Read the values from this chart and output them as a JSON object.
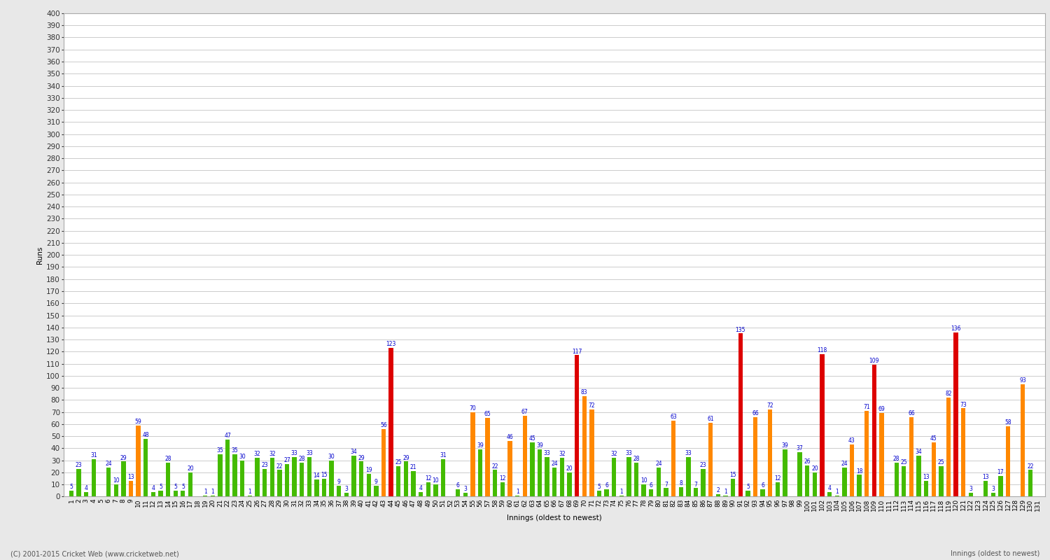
{
  "ylabel": "Runs",
  "xlabel": "Innings (oldest to newest)",
  "copyright": "(C) 2001-2015 Cricket Web (www.cricketweb.net)",
  "ylim": [
    0,
    400
  ],
  "ytick_step": 10,
  "ytick_label_step": 10,
  "bar_width": 0.6,
  "innings_values": [
    5,
    23,
    4,
    31,
    0,
    24,
    10,
    29,
    13,
    59,
    48,
    4,
    5,
    28,
    5,
    5,
    20,
    0,
    1,
    1,
    35,
    47,
    35,
    30,
    1,
    32,
    23,
    32,
    22,
    27,
    33,
    28,
    33,
    14,
    15,
    30,
    9,
    3,
    34,
    29,
    19,
    9,
    56,
    123,
    25,
    29,
    21,
    4,
    12,
    10,
    31,
    0,
    6,
    3,
    70,
    39,
    65,
    22,
    12,
    46,
    1,
    67,
    45,
    39,
    33,
    24,
    32,
    20,
    117,
    83,
    72,
    5,
    6,
    32,
    1,
    33,
    28,
    10,
    6,
    24,
    7,
    63,
    8,
    33,
    7,
    23,
    61,
    2,
    1,
    15,
    135,
    5,
    66,
    6,
    72,
    12,
    39,
    0,
    37,
    26,
    20,
    118,
    4,
    1,
    24,
    43,
    18,
    71,
    109,
    69,
    0,
    28,
    25,
    66,
    34,
    13,
    45,
    25,
    82,
    136,
    73,
    3,
    0,
    13,
    3,
    17,
    58,
    0,
    93,
    22,
    0
  ],
  "innings_colors": [
    "green",
    "green",
    "green",
    "green",
    "green",
    "green",
    "green",
    "green",
    "orange",
    "orange",
    "green",
    "green",
    "green",
    "green",
    "green",
    "green",
    "green",
    "green",
    "green",
    "green",
    "green",
    "green",
    "green",
    "green",
    "green",
    "green",
    "green",
    "green",
    "green",
    "green",
    "green",
    "green",
    "green",
    "green",
    "green",
    "green",
    "green",
    "green",
    "green",
    "green",
    "green",
    "green",
    "orange",
    "red",
    "green",
    "green",
    "green",
    "green",
    "green",
    "green",
    "green",
    "green",
    "green",
    "green",
    "orange",
    "green",
    "orange",
    "green",
    "green",
    "orange",
    "green",
    "orange",
    "green",
    "green",
    "green",
    "green",
    "green",
    "green",
    "red",
    "orange",
    "orange",
    "green",
    "green",
    "green",
    "green",
    "green",
    "green",
    "green",
    "green",
    "green",
    "green",
    "orange",
    "green",
    "green",
    "green",
    "green",
    "orange",
    "green",
    "green",
    "green",
    "red",
    "green",
    "orange",
    "green",
    "orange",
    "green",
    "green",
    "green",
    "green",
    "green",
    "green",
    "red",
    "green",
    "green",
    "green",
    "orange",
    "green",
    "orange",
    "red",
    "orange",
    "green",
    "green",
    "green",
    "orange",
    "green",
    "green",
    "orange",
    "green",
    "orange",
    "red",
    "orange",
    "green",
    "green",
    "green",
    "green",
    "green",
    "orange",
    "green",
    "orange",
    "green",
    "green"
  ],
  "innings_labels": [
    "1",
    "2",
    "3",
    "4",
    "5",
    "6",
    "7",
    "8",
    "9",
    "10",
    "11",
    "12",
    "13",
    "14",
    "15",
    "16",
    "17",
    "18",
    "19",
    "20",
    "21",
    "22",
    "23",
    "24",
    "25",
    "26",
    "27",
    "28",
    "29",
    "30",
    "31",
    "32",
    "33",
    "34",
    "35",
    "36",
    "37",
    "38",
    "39",
    "40",
    "41",
    "42",
    "43",
    "44",
    "45",
    "46",
    "47",
    "48",
    "49",
    "50",
    "51",
    "52",
    "53",
    "54",
    "55",
    "56",
    "57",
    "58",
    "59",
    "60",
    "61",
    "62",
    "63",
    "64",
    "65",
    "66",
    "67",
    "68",
    "69",
    "70",
    "71",
    "72",
    "73",
    "74",
    "75",
    "76",
    "77",
    "78",
    "79",
    "80",
    "81",
    "82",
    "83",
    "84",
    "85",
    "86",
    "87",
    "88",
    "89",
    "90",
    "91",
    "92",
    "93",
    "94",
    "95",
    "96",
    "97",
    "98",
    "99",
    "100",
    "101",
    "102",
    "103",
    "104",
    "105",
    "106",
    "107",
    "108",
    "109",
    "110",
    "111",
    "112",
    "113",
    "114",
    "115",
    "116",
    "117",
    "118",
    "119",
    "120",
    "121",
    "122",
    "123",
    "124",
    "125",
    "126",
    "127",
    "128",
    "129",
    "130",
    "131"
  ],
  "background_color": "#e8e8e8",
  "plot_bg": "#ffffff",
  "grid_color": "#cccccc",
  "bar_color_green": "#44bb00",
  "bar_color_orange": "#ff8800",
  "bar_color_red": "#dd0000",
  "label_color": "#0000cc",
  "label_fontsize": 5.5,
  "axis_fontsize": 7.5,
  "tick_fontsize": 6.5
}
